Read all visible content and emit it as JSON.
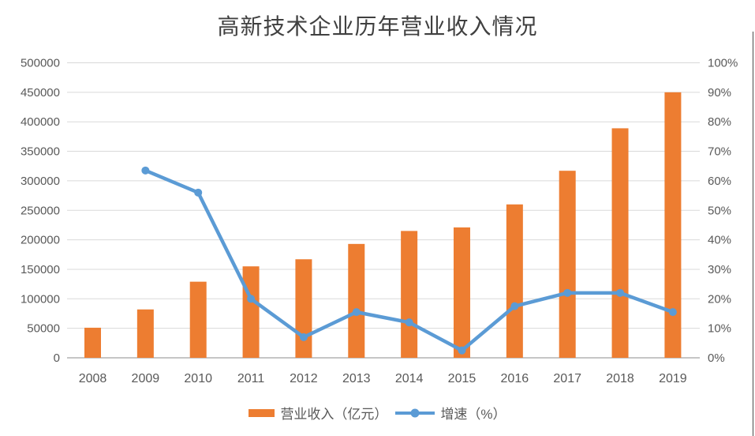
{
  "title": "高新技术企业历年营业收入情况",
  "chart_data": {
    "type": "bar",
    "subtype": "bar-line-combo",
    "title": "高新技术企业历年营业收入情况",
    "categories": [
      "2008",
      "2009",
      "2010",
      "2011",
      "2012",
      "2013",
      "2014",
      "2015",
      "2016",
      "2017",
      "2018",
      "2019"
    ],
    "series": [
      {
        "name": "营业收入（亿元）",
        "chart_type": "bar",
        "axis": "left",
        "color": "#ED7D31",
        "values": [
          51000,
          82000,
          129000,
          155000,
          167000,
          193000,
          215000,
          221000,
          260000,
          317000,
          389000,
          450000
        ]
      },
      {
        "name": "增速（%）",
        "chart_type": "line",
        "axis": "right",
        "color": "#5B9BD5",
        "values": [
          null,
          63.5,
          56,
          20,
          7,
          15.5,
          12,
          2.5,
          17.5,
          22,
          22,
          15.5
        ]
      }
    ],
    "left_axis": {
      "min": 0,
      "max": 500000,
      "step": 50000,
      "tick_labels_top_to_bottom": [
        "500000",
        "450000",
        "400000",
        "350000",
        "300000",
        "250000",
        "200000",
        "150000",
        "100000",
        "50000",
        "0"
      ]
    },
    "right_axis": {
      "min": 0,
      "max": 100,
      "step": 10,
      "tick_labels_top_to_bottom": [
        "100%",
        "90%",
        "80%",
        "70%",
        "60%",
        "50%",
        "40%",
        "30%",
        "20%",
        "10%",
        "0%"
      ]
    },
    "grid": true,
    "legend_position": "bottom"
  },
  "legend": {
    "items": [
      {
        "label": "营业收入（亿元）",
        "swatch": "bar"
      },
      {
        "label": "增速（%）",
        "swatch": "line"
      }
    ]
  },
  "colors": {
    "bar": "#ED7D31",
    "line": "#5B9BD5",
    "grid": "#D9D9D9",
    "axis_line": "#C6C6C6",
    "text": "#595959",
    "title": "#404040",
    "border": "#4A4A4A"
  }
}
